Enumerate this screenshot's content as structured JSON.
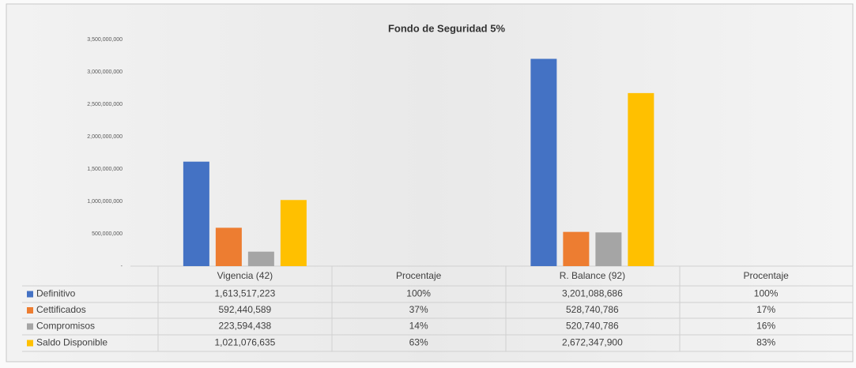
{
  "chart_data": {
    "type": "bar",
    "title": "Fondo de Seguridad 5%",
    "categories": [
      "Vigencia (42)",
      "Procentaje",
      "R. Balance (92)",
      "Procentaje"
    ],
    "series": [
      {
        "name": "Definitivo",
        "color": "#4472c4",
        "values": [
          1613517223,
          1,
          3201088686,
          1
        ],
        "value_labels": [
          "1,613,517,223",
          "100%",
          "3,201,088,686",
          "100%"
        ]
      },
      {
        "name": "Cettificados",
        "color": "#ed7d31",
        "values": [
          592440589,
          0.37,
          528740786,
          0.17
        ],
        "value_labels": [
          "592,440,589",
          "37%",
          "528,740,786",
          "17%"
        ]
      },
      {
        "name": "Compromisos",
        "color": "#a5a5a5",
        "values": [
          223594438,
          0.14,
          520740786,
          0.16
        ],
        "value_labels": [
          "223,594,438",
          "14%",
          "520,740,786",
          "16%"
        ]
      },
      {
        "name": "Saldo Disponible",
        "color": "#ffc000",
        "values": [
          1021076635,
          0.63,
          2672347900,
          0.83
        ],
        "value_labels": [
          "1,021,076,635",
          "63%",
          "2,672,347,900",
          "83%"
        ]
      }
    ],
    "ylim": [
      0,
      3500000000
    ],
    "yticks": [
      {
        "value": 0,
        "label": "-"
      },
      {
        "value": 500000000,
        "label": "500,000,000"
      },
      {
        "value": 1000000000,
        "label": "1,000,000,000"
      },
      {
        "value": 1500000000,
        "label": "1,500,000,000"
      },
      {
        "value": 2000000000,
        "label": "2,000,000,000"
      },
      {
        "value": 2500000000,
        "label": "2,500,000,000"
      },
      {
        "value": 3000000000,
        "label": "3,000,000,000"
      },
      {
        "value": 3500000000,
        "label": "3,500,000,000"
      }
    ],
    "grid": false
  }
}
